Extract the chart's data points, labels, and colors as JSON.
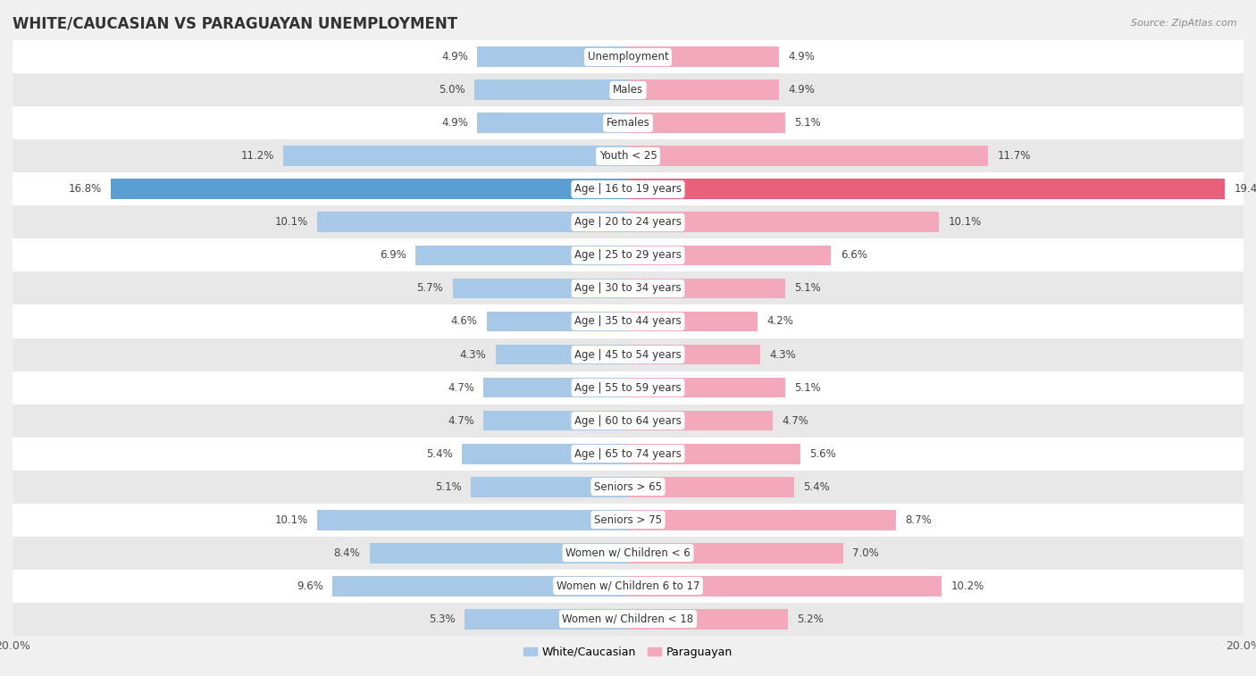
{
  "title": "WHITE/CAUCASIAN VS PARAGUAYAN UNEMPLOYMENT",
  "source": "Source: ZipAtlas.com",
  "categories": [
    "Unemployment",
    "Males",
    "Females",
    "Youth < 25",
    "Age | 16 to 19 years",
    "Age | 20 to 24 years",
    "Age | 25 to 29 years",
    "Age | 30 to 34 years",
    "Age | 35 to 44 years",
    "Age | 45 to 54 years",
    "Age | 55 to 59 years",
    "Age | 60 to 64 years",
    "Age | 65 to 74 years",
    "Seniors > 65",
    "Seniors > 75",
    "Women w/ Children < 6",
    "Women w/ Children 6 to 17",
    "Women w/ Children < 18"
  ],
  "white_values": [
    4.9,
    5.0,
    4.9,
    11.2,
    16.8,
    10.1,
    6.9,
    5.7,
    4.6,
    4.3,
    4.7,
    4.7,
    5.4,
    5.1,
    10.1,
    8.4,
    9.6,
    5.3
  ],
  "paraguayan_values": [
    4.9,
    4.9,
    5.1,
    11.7,
    19.4,
    10.1,
    6.6,
    5.1,
    4.2,
    4.3,
    5.1,
    4.7,
    5.6,
    5.4,
    8.7,
    7.0,
    10.2,
    5.2
  ],
  "white_color": "#a8c8e8",
  "paraguayan_color": "#f4a8bc",
  "highlight_white_color": "#5a9fd4",
  "highlight_paraguayan_color": "#e8607a",
  "bar_height": 0.62,
  "xlim": 20.0,
  "bg_color": "#f0f0f0",
  "row_white": "#ffffff",
  "row_gray": "#e8e8e8",
  "legend_white": "White/Caucasian",
  "legend_paraguayan": "Paraguayan",
  "title_fontsize": 12,
  "label_fontsize": 8.5,
  "value_fontsize": 8.5,
  "tick_fontsize": 9
}
